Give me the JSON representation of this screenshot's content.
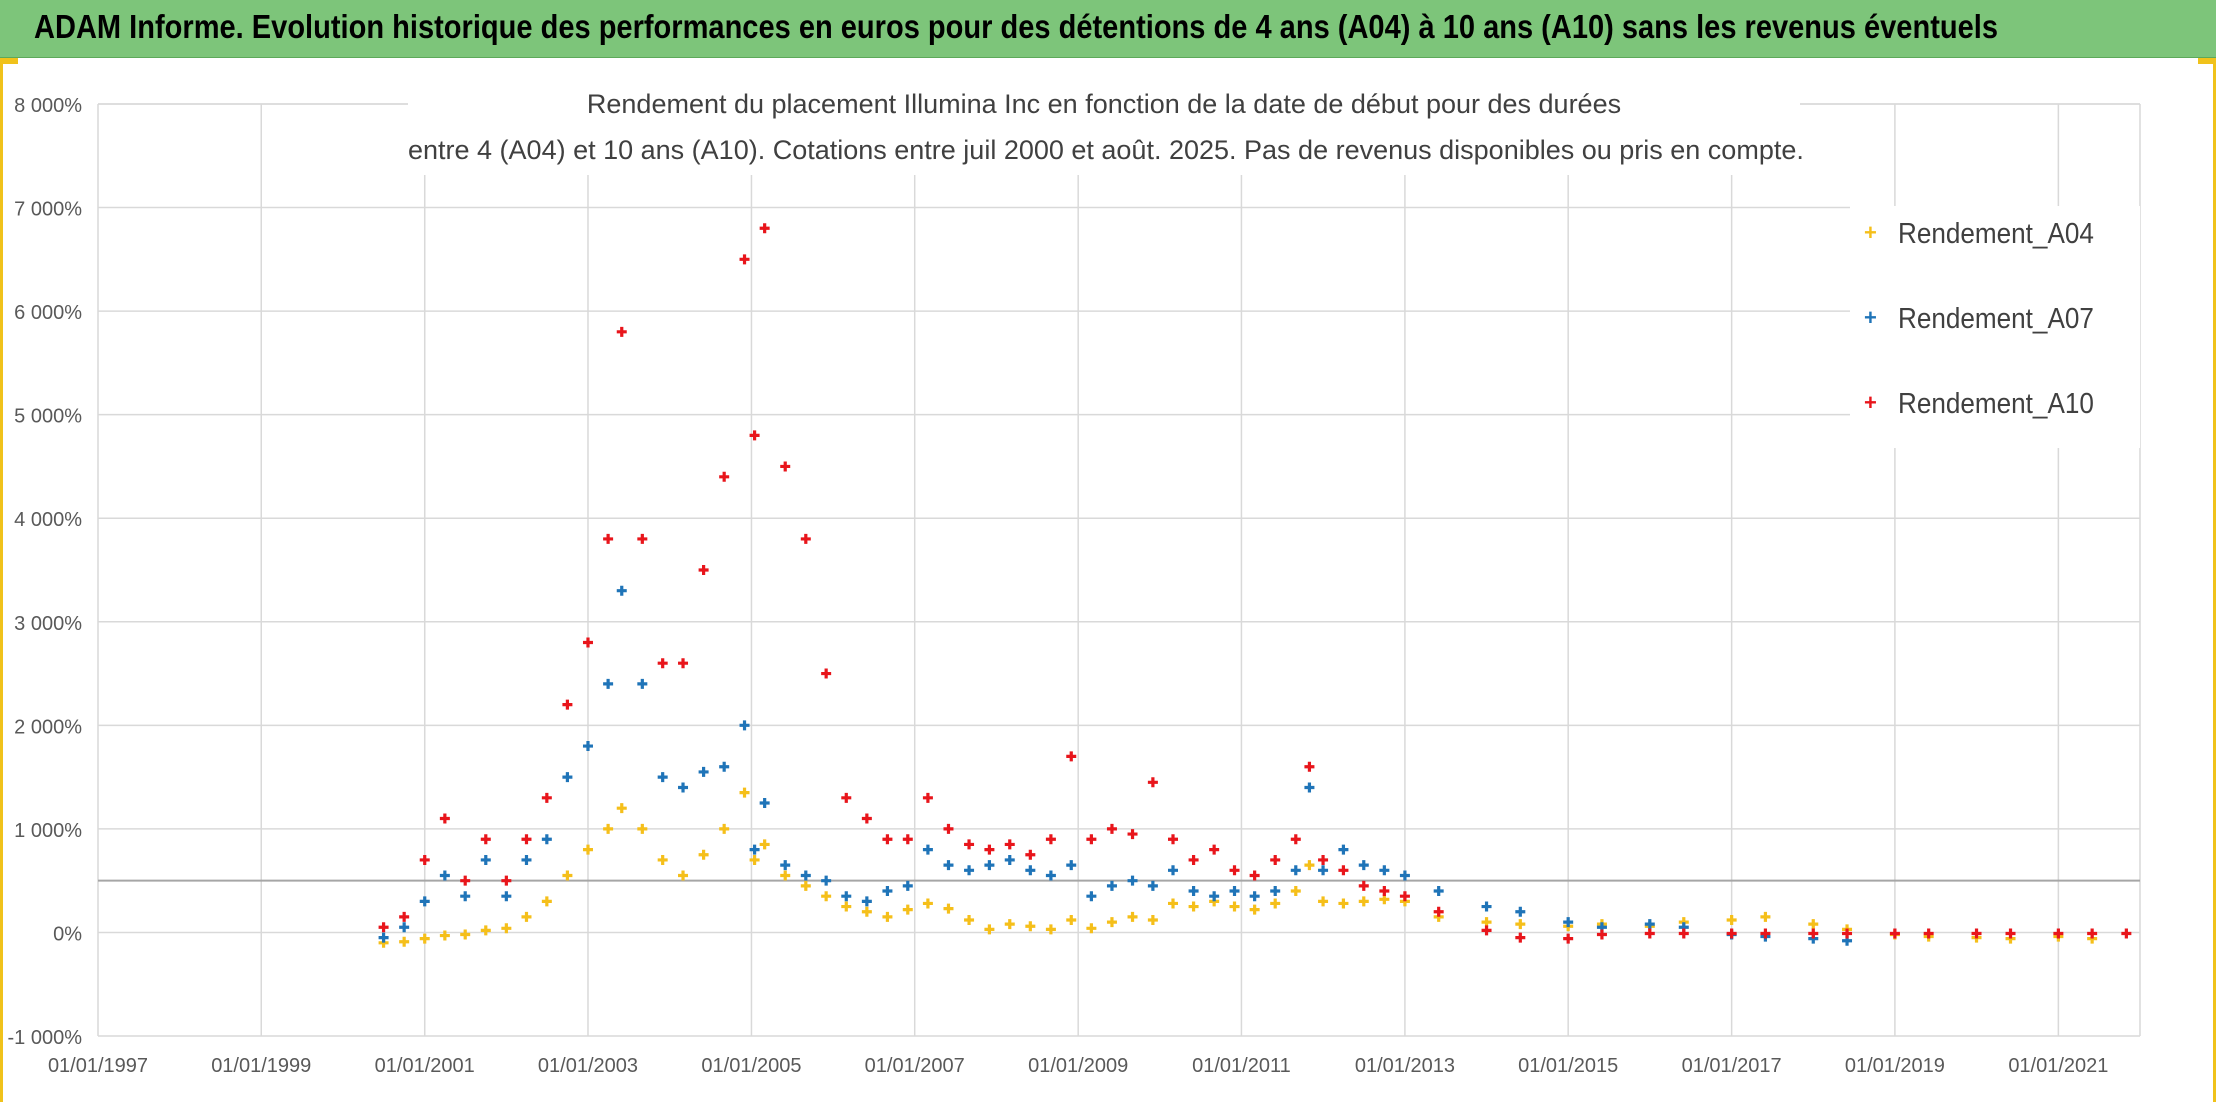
{
  "header": {
    "title": "ADAM Informe. Evolution historique des performances en euros pour des détentions de 4 ans (A04) à 10 ans (A10) sans les revenus éventuels"
  },
  "chart_data": {
    "type": "scatter",
    "title": [
      "Rendement du placement Illumina Inc en fonction de la date de début pour des durées",
      "entre 4 (A04) et 10 ans (A10). Cotations entre juil 2000 et août. 2025. Pas de revenus disponibles ou pris en compte."
    ],
    "xlabel": "",
    "ylabel": "",
    "x_ticks": [
      "01/01/1997",
      "01/01/1999",
      "01/01/2001",
      "01/01/2003",
      "01/01/2005",
      "01/01/2007",
      "01/01/2009",
      "01/01/2011",
      "01/01/2013",
      "01/01/2015",
      "01/01/2017",
      "01/01/2019",
      "01/01/2021"
    ],
    "y_ticks": [
      "-1 000%",
      "0%",
      "1 000%",
      "2 000%",
      "3 000%",
      "4 000%",
      "5 000%",
      "6 000%",
      "7 000%",
      "8 000%"
    ],
    "xlim": [
      "1997-01-01",
      "2022-01-01"
    ],
    "ylim": [
      -1000,
      8000
    ],
    "reference_line_y": 500,
    "grid": true,
    "legend_position": "top-right",
    "marker": "+",
    "series": [
      {
        "name": "Rendement_A04",
        "color": "#f5bf1a",
        "points": [
          [
            "2000-07-01",
            -100
          ],
          [
            "2000-10-01",
            -90
          ],
          [
            "2001-01-01",
            -60
          ],
          [
            "2001-04-01",
            -30
          ],
          [
            "2001-07-01",
            -20
          ],
          [
            "2001-10-01",
            20
          ],
          [
            "2002-01-01",
            40
          ],
          [
            "2002-04-01",
            150
          ],
          [
            "2002-07-01",
            300
          ],
          [
            "2002-10-01",
            550
          ],
          [
            "2003-01-01",
            800
          ],
          [
            "2003-04-01",
            1000
          ],
          [
            "2003-06-01",
            1200
          ],
          [
            "2003-09-01",
            1000
          ],
          [
            "2003-12-01",
            700
          ],
          [
            "2004-03-01",
            550
          ],
          [
            "2004-06-01",
            750
          ],
          [
            "2004-09-01",
            1000
          ],
          [
            "2004-12-01",
            1350
          ],
          [
            "2005-01-15",
            700
          ],
          [
            "2005-03-01",
            850
          ],
          [
            "2005-06-01",
            550
          ],
          [
            "2005-09-01",
            450
          ],
          [
            "2005-12-01",
            350
          ],
          [
            "2006-03-01",
            250
          ],
          [
            "2006-06-01",
            200
          ],
          [
            "2006-09-01",
            150
          ],
          [
            "2006-12-01",
            220
          ],
          [
            "2007-03-01",
            280
          ],
          [
            "2007-06-01",
            230
          ],
          [
            "2007-09-01",
            120
          ],
          [
            "2007-12-01",
            30
          ],
          [
            "2008-03-01",
            80
          ],
          [
            "2008-06-01",
            60
          ],
          [
            "2008-09-01",
            30
          ],
          [
            "2008-12-01",
            120
          ],
          [
            "2009-03-01",
            40
          ],
          [
            "2009-06-01",
            100
          ],
          [
            "2009-09-01",
            150
          ],
          [
            "2009-12-01",
            120
          ],
          [
            "2010-03-01",
            280
          ],
          [
            "2010-06-01",
            250
          ],
          [
            "2010-09-01",
            300
          ],
          [
            "2010-12-01",
            250
          ],
          [
            "2011-03-01",
            220
          ],
          [
            "2011-06-01",
            280
          ],
          [
            "2011-09-01",
            400
          ],
          [
            "2011-11-01",
            650
          ],
          [
            "2012-01-01",
            300
          ],
          [
            "2012-04-01",
            280
          ],
          [
            "2012-07-01",
            300
          ],
          [
            "2012-10-01",
            320
          ],
          [
            "2013-01-01",
            300
          ],
          [
            "2013-06-01",
            150
          ],
          [
            "2014-01-01",
            100
          ],
          [
            "2014-06-01",
            80
          ],
          [
            "2015-01-01",
            60
          ],
          [
            "2015-06-01",
            80
          ],
          [
            "2016-01-01",
            60
          ],
          [
            "2016-06-01",
            100
          ],
          [
            "2017-01-01",
            120
          ],
          [
            "2017-06-01",
            150
          ],
          [
            "2018-01-01",
            80
          ],
          [
            "2018-06-01",
            30
          ],
          [
            "2019-01-01",
            -20
          ],
          [
            "2019-06-01",
            -40
          ],
          [
            "2020-01-01",
            -50
          ],
          [
            "2020-06-01",
            -60
          ],
          [
            "2021-01-01",
            -40
          ],
          [
            "2021-06-01",
            -60
          ]
        ]
      },
      {
        "name": "Rendement_A07",
        "color": "#1f74b8",
        "points": [
          [
            "2000-07-01",
            -50
          ],
          [
            "2000-10-01",
            50
          ],
          [
            "2001-01-01",
            300
          ],
          [
            "2001-04-01",
            550
          ],
          [
            "2001-07-01",
            350
          ],
          [
            "2001-10-01",
            700
          ],
          [
            "2002-01-01",
            350
          ],
          [
            "2002-04-01",
            700
          ],
          [
            "2002-07-01",
            900
          ],
          [
            "2002-10-01",
            1500
          ],
          [
            "2003-01-01",
            1800
          ],
          [
            "2003-04-01",
            2400
          ],
          [
            "2003-06-01",
            3300
          ],
          [
            "2003-09-01",
            2400
          ],
          [
            "2003-12-01",
            1500
          ],
          [
            "2004-03-01",
            1400
          ],
          [
            "2004-06-01",
            1550
          ],
          [
            "2004-09-01",
            1600
          ],
          [
            "2004-12-01",
            2000
          ],
          [
            "2005-01-15",
            800
          ],
          [
            "2005-03-01",
            1250
          ],
          [
            "2005-06-01",
            650
          ],
          [
            "2005-09-01",
            550
          ],
          [
            "2005-12-01",
            500
          ],
          [
            "2006-03-01",
            350
          ],
          [
            "2006-06-01",
            300
          ],
          [
            "2006-09-01",
            400
          ],
          [
            "2006-12-01",
            450
          ],
          [
            "2007-03-01",
            800
          ],
          [
            "2007-06-01",
            650
          ],
          [
            "2007-09-01",
            600
          ],
          [
            "2007-12-01",
            650
          ],
          [
            "2008-03-01",
            700
          ],
          [
            "2008-06-01",
            600
          ],
          [
            "2008-09-01",
            550
          ],
          [
            "2008-12-01",
            650
          ],
          [
            "2009-03-01",
            350
          ],
          [
            "2009-06-01",
            450
          ],
          [
            "2009-09-01",
            500
          ],
          [
            "2009-12-01",
            450
          ],
          [
            "2010-03-01",
            600
          ],
          [
            "2010-06-01",
            400
          ],
          [
            "2010-09-01",
            350
          ],
          [
            "2010-12-01",
            400
          ],
          [
            "2011-03-01",
            350
          ],
          [
            "2011-06-01",
            400
          ],
          [
            "2011-09-01",
            600
          ],
          [
            "2011-11-01",
            1400
          ],
          [
            "2012-01-01",
            600
          ],
          [
            "2012-04-01",
            800
          ],
          [
            "2012-07-01",
            650
          ],
          [
            "2012-10-01",
            600
          ],
          [
            "2013-01-01",
            550
          ],
          [
            "2013-06-01",
            400
          ],
          [
            "2014-01-01",
            250
          ],
          [
            "2014-06-01",
            200
          ],
          [
            "2015-01-01",
            100
          ],
          [
            "2015-06-01",
            50
          ],
          [
            "2016-01-01",
            80
          ],
          [
            "2016-06-01",
            50
          ],
          [
            "2017-01-01",
            -20
          ],
          [
            "2017-06-01",
            -40
          ],
          [
            "2018-01-01",
            -60
          ],
          [
            "2018-06-01",
            -80
          ]
        ]
      },
      {
        "name": "Rendement_A10",
        "color": "#e8151b",
        "points": [
          [
            "2000-07-01",
            50
          ],
          [
            "2000-10-01",
            150
          ],
          [
            "2001-01-01",
            700
          ],
          [
            "2001-04-01",
            1100
          ],
          [
            "2001-07-01",
            500
          ],
          [
            "2001-10-01",
            900
          ],
          [
            "2002-01-01",
            500
          ],
          [
            "2002-04-01",
            900
          ],
          [
            "2002-07-01",
            1300
          ],
          [
            "2002-10-01",
            2200
          ],
          [
            "2003-01-01",
            2800
          ],
          [
            "2003-04-01",
            3800
          ],
          [
            "2003-06-01",
            5800
          ],
          [
            "2003-09-01",
            3800
          ],
          [
            "2003-12-01",
            2600
          ],
          [
            "2004-03-01",
            2600
          ],
          [
            "2004-06-01",
            3500
          ],
          [
            "2004-09-01",
            4400
          ],
          [
            "2004-12-01",
            6500
          ],
          [
            "2005-01-15",
            4800
          ],
          [
            "2005-03-01",
            6800
          ],
          [
            "2005-06-01",
            4500
          ],
          [
            "2005-09-01",
            3800
          ],
          [
            "2005-12-01",
            2500
          ],
          [
            "2006-03-01",
            1300
          ],
          [
            "2006-06-01",
            1100
          ],
          [
            "2006-09-01",
            900
          ],
          [
            "2006-12-01",
            900
          ],
          [
            "2007-03-01",
            1300
          ],
          [
            "2007-06-01",
            1000
          ],
          [
            "2007-09-01",
            850
          ],
          [
            "2007-12-01",
            800
          ],
          [
            "2008-03-01",
            850
          ],
          [
            "2008-06-01",
            750
          ],
          [
            "2008-09-01",
            900
          ],
          [
            "2008-12-01",
            1700
          ],
          [
            "2009-03-01",
            900
          ],
          [
            "2009-06-01",
            1000
          ],
          [
            "2009-09-01",
            950
          ],
          [
            "2009-12-01",
            1450
          ],
          [
            "2010-03-01",
            900
          ],
          [
            "2010-06-01",
            700
          ],
          [
            "2010-09-01",
            800
          ],
          [
            "2010-12-01",
            600
          ],
          [
            "2011-03-01",
            550
          ],
          [
            "2011-06-01",
            700
          ],
          [
            "2011-09-01",
            900
          ],
          [
            "2011-11-01",
            1600
          ],
          [
            "2012-01-01",
            700
          ],
          [
            "2012-04-01",
            600
          ],
          [
            "2012-07-01",
            450
          ],
          [
            "2012-10-01",
            400
          ],
          [
            "2013-01-01",
            350
          ],
          [
            "2013-06-01",
            200
          ],
          [
            "2014-01-01",
            20
          ],
          [
            "2014-06-01",
            -50
          ],
          [
            "2015-01-01",
            -60
          ],
          [
            "2015-06-01",
            -20
          ],
          [
            "2016-01-01",
            -10
          ],
          [
            "2016-06-01",
            -10
          ],
          [
            "2017-01-01",
            -10
          ],
          [
            "2017-06-01",
            -10
          ],
          [
            "2018-01-01",
            -10
          ],
          [
            "2018-06-01",
            -10
          ],
          [
            "2019-01-01",
            -10
          ],
          [
            "2019-06-01",
            -10
          ],
          [
            "2020-01-01",
            -10
          ],
          [
            "2020-06-01",
            -10
          ],
          [
            "2021-01-01",
            -10
          ],
          [
            "2021-06-01",
            -10
          ],
          [
            "2021-11-01",
            -10
          ]
        ]
      }
    ]
  }
}
